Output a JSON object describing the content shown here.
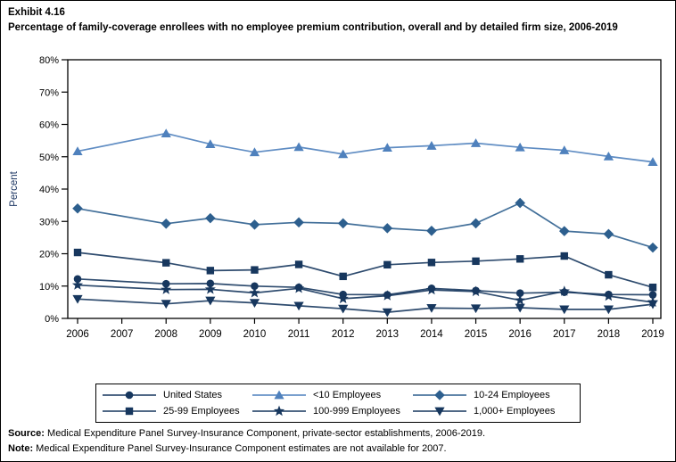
{
  "header": {
    "exhibit": "Exhibit 4.16",
    "title": "Percentage of family-coverage enrollees with no employee premium contribution, overall and by detailed firm size, 2006-2019"
  },
  "footer": {
    "source_label": "Source:",
    "source_text": " Medical Expenditure Panel Survey-Insurance Component, private-sector establishments, 2006-2019.",
    "note_label": "Note:",
    "note_text": " Medical Expenditure Panel Survey-Insurance Component estimates are not available for 2007."
  },
  "chart_data": {
    "type": "line",
    "title": "Percentage of family-coverage enrollees with no employee premium contribution, overall and by detailed firm size, 2006-2019",
    "xlabel": "",
    "ylabel": "Percent",
    "ylim": [
      0,
      80
    ],
    "ytick_step": 10,
    "ytick_suffix": "%",
    "grid": false,
    "legend_position": "bottom",
    "xticks": [
      2006,
      2007,
      2008,
      2009,
      2010,
      2011,
      2012,
      2013,
      2014,
      2015,
      2016,
      2017,
      2018,
      2019
    ],
    "x": [
      2006,
      2008,
      2009,
      2010,
      2011,
      2012,
      2013,
      2014,
      2015,
      2016,
      2017,
      2018,
      2019
    ],
    "note": "No data for 2007",
    "axis_color": "#000000",
    "ylabel_color": "#1F3864",
    "series": [
      {
        "name": "United States",
        "marker": "circle",
        "color": "#17375E",
        "values": [
          12.2,
          10.7,
          10.8,
          10.0,
          9.6,
          7.4,
          7.3,
          9.3,
          8.6,
          7.8,
          8.1,
          7.4,
          7.3
        ]
      },
      {
        "name": "<10 Employees",
        "marker": "triangle-up",
        "color": "#4F81BD",
        "values": [
          51.7,
          57.2,
          53.9,
          51.4,
          53.0,
          50.8,
          52.8,
          53.4,
          54.2,
          52.9,
          52.0,
          50.1,
          48.4
        ]
      },
      {
        "name": "10-24 Employees",
        "marker": "diamond",
        "color": "#2D5F8E",
        "values": [
          34.0,
          29.3,
          31.0,
          29.0,
          29.7,
          29.4,
          27.9,
          27.1,
          29.4,
          35.7,
          27.0,
          26.1,
          21.9
        ]
      },
      {
        "name": "25-99 Employees",
        "marker": "square",
        "color": "#17375E",
        "values": [
          20.4,
          17.2,
          14.8,
          15.0,
          16.7,
          13.0,
          16.6,
          17.3,
          17.7,
          18.4,
          19.3,
          13.5,
          9.6
        ]
      },
      {
        "name": "100-999 Employees",
        "marker": "star",
        "color": "#17375E",
        "values": [
          10.3,
          8.9,
          9.0,
          7.9,
          9.3,
          6.1,
          7.0,
          8.8,
          8.3,
          5.6,
          8.4,
          6.9,
          5.0
        ]
      },
      {
        "name": "1,000+ Employees",
        "marker": "triangle-down",
        "color": "#17375E",
        "values": [
          6.0,
          4.5,
          5.5,
          4.8,
          3.9,
          3.0,
          1.9,
          3.2,
          3.1,
          3.3,
          2.8,
          2.8,
          4.4
        ]
      }
    ]
  }
}
